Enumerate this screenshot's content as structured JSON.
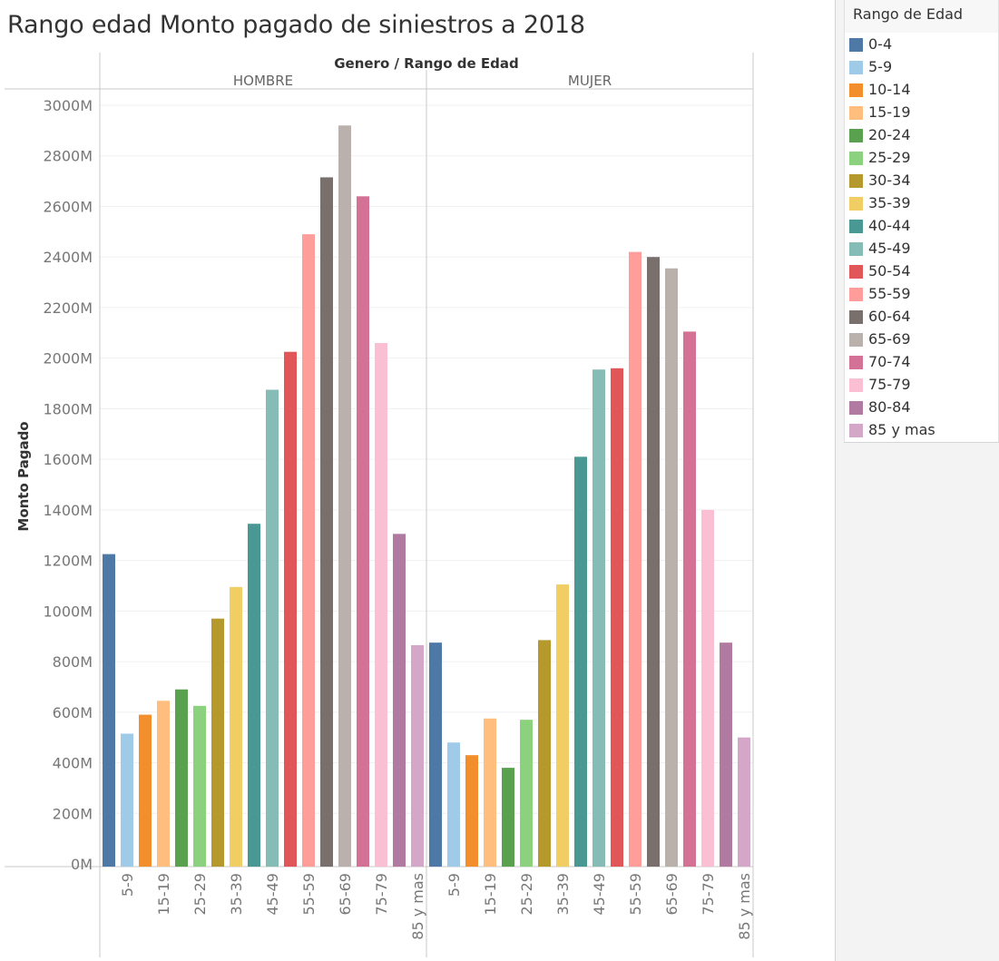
{
  "title": "Rango edad Monto pagado de siniestros a 2018",
  "legend": {
    "title": "Rango de Edad",
    "items": [
      {
        "label": "0-4",
        "color": "#4e79a7"
      },
      {
        "label": "5-9",
        "color": "#a0cbe8"
      },
      {
        "label": "10-14",
        "color": "#f28e2b"
      },
      {
        "label": "15-19",
        "color": "#ffbe7d"
      },
      {
        "label": "20-24",
        "color": "#59a14f"
      },
      {
        "label": "25-29",
        "color": "#8cd17d"
      },
      {
        "label": "30-34",
        "color": "#b6992d"
      },
      {
        "label": "35-39",
        "color": "#f1ce63"
      },
      {
        "label": "40-44",
        "color": "#499894"
      },
      {
        "label": "45-49",
        "color": "#86bcb6"
      },
      {
        "label": "50-54",
        "color": "#e15759"
      },
      {
        "label": "55-59",
        "color": "#ff9d9a"
      },
      {
        "label": "60-64",
        "color": "#79706e"
      },
      {
        "label": "65-69",
        "color": "#bab0ac"
      },
      {
        "label": "70-74",
        "color": "#d37295"
      },
      {
        "label": "75-79",
        "color": "#fabfd2"
      },
      {
        "label": "80-84",
        "color": "#b07aa1"
      },
      {
        "label": "85 y mas",
        "color": "#d4a6c8"
      }
    ]
  },
  "chart_data": {
    "type": "bar",
    "column_header": "Genero  /  Rango de Edad",
    "ylabel": "Monto Pagado",
    "ylim": [
      0,
      3000
    ],
    "y_ticks": [
      "0M",
      "200M",
      "400M",
      "600M",
      "800M",
      "1000M",
      "1200M",
      "1400M",
      "1600M",
      "1800M",
      "2000M",
      "2200M",
      "2400M",
      "2600M",
      "2800M",
      "3000M"
    ],
    "unit": "M",
    "grid": true,
    "categories": [
      "0-4",
      "5-9",
      "10-14",
      "15-19",
      "20-24",
      "25-29",
      "30-34",
      "35-39",
      "40-44",
      "45-49",
      "50-54",
      "55-59",
      "60-64",
      "65-69",
      "70-74",
      "75-79",
      "80-84",
      "85 y mas"
    ],
    "x_tick_labels": [
      "5-9",
      "15-19",
      "25-29",
      "35-39",
      "45-49",
      "55-59",
      "65-69",
      "75-79",
      "85 y mas"
    ],
    "panels": [
      {
        "name": "HOMBRE",
        "values": [
          1225,
          515,
          590,
          645,
          690,
          625,
          970,
          1095,
          1345,
          1875,
          2025,
          2490,
          2715,
          2920,
          2640,
          2060,
          1305,
          865
        ]
      },
      {
        "name": "MUJER",
        "values": [
          875,
          480,
          430,
          575,
          380,
          570,
          885,
          1105,
          1610,
          1955,
          1960,
          2420,
          2400,
          2355,
          2105,
          1400,
          875,
          500
        ]
      }
    ]
  }
}
